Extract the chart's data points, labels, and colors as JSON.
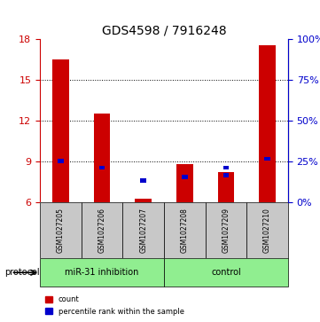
{
  "title": "GDS4598 / 7916248",
  "samples": [
    "GSM1027205",
    "GSM1027206",
    "GSM1027207",
    "GSM1027208",
    "GSM1027209",
    "GSM1027210"
  ],
  "red_counts": [
    16.5,
    12.5,
    6.3,
    8.8,
    8.2,
    17.5
  ],
  "blue_percentiles": [
    9.05,
    8.55,
    7.6,
    7.85,
    8.0,
    9.2
  ],
  "blue_percentiles2": [
    null,
    null,
    null,
    null,
    8.55,
    null
  ],
  "ylim_left": [
    6,
    18
  ],
  "ylim_right": [
    0,
    100
  ],
  "yticks_left": [
    6,
    9,
    12,
    15,
    18
  ],
  "yticks_right": [
    0,
    25,
    50,
    75,
    100
  ],
  "groups": [
    {
      "label": "miR-31 inhibition",
      "samples": [
        0,
        1,
        2
      ],
      "color": "#90ee90"
    },
    {
      "label": "control",
      "samples": [
        3,
        4,
        5
      ],
      "color": "#90ee90"
    }
  ],
  "protocol_label": "protocol",
  "bar_width": 0.4,
  "red_color": "#cc0000",
  "blue_color": "#0000cc",
  "background_color": "#ffffff",
  "plot_bg_color": "#ffffff",
  "grid_color": "#000000",
  "left_axis_color": "#cc0000",
  "right_axis_color": "#0000cc",
  "group_bg_color": "#c8c8c8",
  "protocol_bg_color": "#90ee90",
  "legend_red_label": "count",
  "legend_blue_label": "percentile rank within the sample",
  "base_value": 6
}
